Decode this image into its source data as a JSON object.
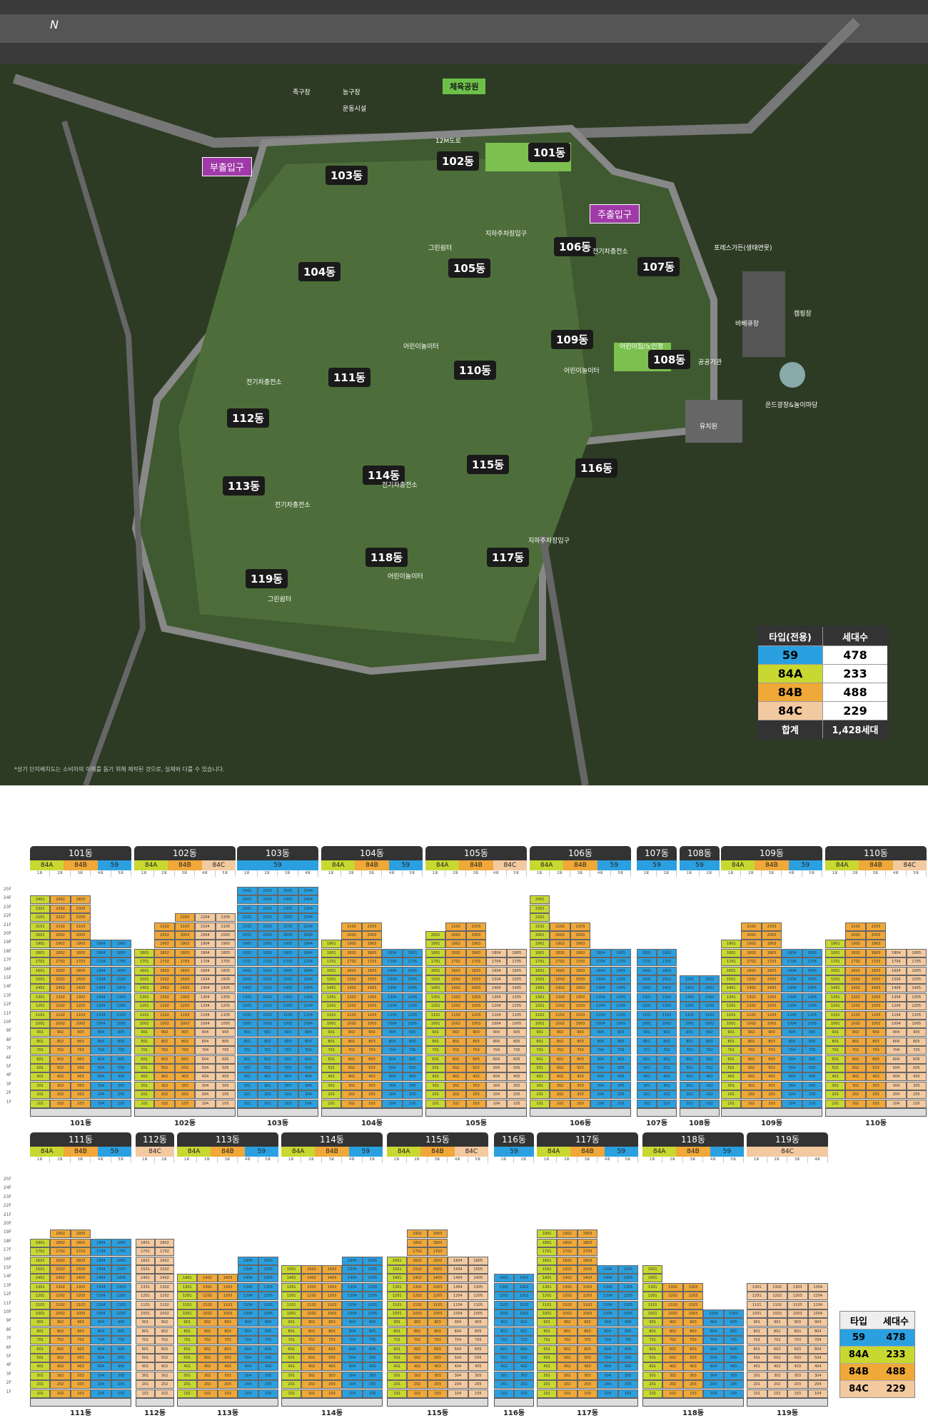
{
  "map": {
    "compass": "N",
    "park_label": "체육공원",
    "gates": {
      "sub": "부출입구",
      "main": "주출입구"
    },
    "road_label": "12M도로",
    "buildings": [
      "101동",
      "102동",
      "103동",
      "104동",
      "105동",
      "106동",
      "107동",
      "108동",
      "109동",
      "110동",
      "111동",
      "112동",
      "113동",
      "114동",
      "115동",
      "116동",
      "117동",
      "118동",
      "119동"
    ],
    "facilities": [
      "족구장",
      "농구장",
      "운동시설",
      "그린쉼터",
      "그린쉼터",
      "지하주차장입구",
      "지하주차장입구",
      "전기차충전소",
      "전기차충전소",
      "전기차충전소",
      "전기차충전소",
      "어린이놀이터",
      "어린이놀이터",
      "어린이놀이터",
      "어린이집/노인정",
      "포레스가든(생태연못)",
      "바베큐장",
      "캠핑장",
      "공공기관",
      "유치원",
      "온드광장&놀이마당"
    ],
    "disclaimer": "*상기 단지배치도는 소비자의 이해를 돕기 위해 제작된 것으로, 실제와 다를 수 있습니다.",
    "legend": {
      "header": [
        "타입(전용)",
        "세대수"
      ],
      "rows": [
        {
          "type": "59",
          "count": "478",
          "color": "#2aa0e0"
        },
        {
          "type": "84A",
          "count": "233",
          "color": "#c8d830"
        },
        {
          "type": "84B",
          "count": "488",
          "color": "#f0a838"
        },
        {
          "type": "84C",
          "count": "229",
          "color": "#f3c9a0"
        }
      ],
      "total_label": "합계",
      "total": "1,428세대"
    }
  },
  "colors": {
    "59": "#2aa0e0",
    "84A": "#c8d830",
    "84B": "#f0a838",
    "84C": "#f3c9a0"
  },
  "floor_labels": [
    "25F",
    "24F",
    "23F",
    "22F",
    "21F",
    "20F",
    "19F",
    "18F",
    "17F",
    "16F",
    "15F",
    "14F",
    "13F",
    "12F",
    "11F",
    "10F",
    "9F",
    "8F",
    "7F",
    "6F",
    "5F",
    "4F",
    "3F",
    "2F",
    "1F"
  ],
  "rows": [
    [
      {
        "name": "101동",
        "types": [
          "84A",
          "84B",
          "59"
        ],
        "lines": [
          "1호",
          "2호",
          "3호",
          "4호",
          "5호"
        ],
        "heights": [
          24,
          24,
          24,
          19,
          19
        ],
        "ltypes": [
          "84A",
          "84B",
          "84B",
          "59",
          "59"
        ]
      },
      {
        "name": "102동",
        "types": [
          "84A",
          "84B",
          "84C"
        ],
        "lines": [
          "1호",
          "2호",
          "3호",
          "4호",
          "5호"
        ],
        "heights": [
          18,
          21,
          22,
          22,
          22
        ],
        "ltypes": [
          "84A",
          "84B",
          "84B",
          "84C",
          "84C"
        ]
      },
      {
        "name": "103동",
        "types": [
          "59"
        ],
        "lines": [
          "1호",
          "2호",
          "3호",
          "4호"
        ],
        "heights": [
          25,
          25,
          25,
          25
        ],
        "ltypes": [
          "59",
          "59",
          "59",
          "59"
        ]
      },
      {
        "name": "104동",
        "types": [
          "84A",
          "84B",
          "59"
        ],
        "lines": [
          "1호",
          "2호",
          "3호",
          "4호",
          "5호"
        ],
        "heights": [
          19,
          21,
          21,
          18,
          18
        ],
        "ltypes": [
          "84A",
          "84B",
          "84B",
          "59",
          "59"
        ]
      },
      {
        "name": "105동",
        "types": [
          "84A",
          "84B",
          "84C"
        ],
        "lines": [
          "1호",
          "2호",
          "3호",
          "4호",
          "5호"
        ],
        "heights": [
          20,
          21,
          21,
          18,
          18
        ],
        "ltypes": [
          "84A",
          "84B",
          "84B",
          "84C",
          "84C"
        ]
      },
      {
        "name": "106동",
        "types": [
          "84A",
          "84B",
          "59"
        ],
        "lines": [
          "1호",
          "2호",
          "3호",
          "4호",
          "5호"
        ],
        "heights": [
          24,
          21,
          21,
          18,
          18
        ],
        "ltypes": [
          "84A",
          "84B",
          "84B",
          "59",
          "59"
        ]
      },
      {
        "name": "107동",
        "types": [
          "59"
        ],
        "lines": [
          "1호",
          "2호"
        ],
        "heights": [
          18,
          18
        ],
        "ltypes": [
          "59",
          "59"
        ]
      },
      {
        "name": "108동",
        "types": [
          "59"
        ],
        "lines": [
          "1호",
          "2호"
        ],
        "heights": [
          15,
          15
        ],
        "ltypes": [
          "59",
          "59"
        ]
      },
      {
        "name": "109동",
        "types": [
          "84A",
          "84B",
          "59"
        ],
        "lines": [
          "1호",
          "2호",
          "3호",
          "4호",
          "5호"
        ],
        "heights": [
          19,
          21,
          21,
          18,
          18
        ],
        "ltypes": [
          "84A",
          "84B",
          "84B",
          "59",
          "59"
        ]
      },
      {
        "name": "110동",
        "types": [
          "84A",
          "84B",
          "84C"
        ],
        "lines": [
          "1호",
          "2호",
          "3호",
          "4호",
          "5호"
        ],
        "heights": [
          19,
          21,
          21,
          18,
          18
        ],
        "ltypes": [
          "84A",
          "84B",
          "84B",
          "84C",
          "84C"
        ]
      }
    ],
    [
      {
        "name": "111동",
        "types": [
          "84A",
          "84B",
          "59"
        ],
        "lines": [
          "1호",
          "2호",
          "3호",
          "4호",
          "5호"
        ],
        "heights": [
          18,
          19,
          19,
          18,
          18
        ],
        "ltypes": [
          "84A",
          "84B",
          "84B",
          "59",
          "59"
        ]
      },
      {
        "name": "112동",
        "types": [
          "84C"
        ],
        "lines": [
          "1호",
          "2호"
        ],
        "heights": [
          18,
          18
        ],
        "ltypes": [
          "84C",
          "84C"
        ]
      },
      {
        "name": "113동",
        "types": [
          "84A",
          "84B",
          "59"
        ],
        "lines": [
          "1호",
          "2호",
          "3호",
          "4호",
          "5호"
        ],
        "heights": [
          14,
          14,
          14,
          16,
          16
        ],
        "ltypes": [
          "84A",
          "84B",
          "84B",
          "59",
          "59"
        ]
      },
      {
        "name": "114동",
        "types": [
          "84A",
          "84B",
          "59"
        ],
        "lines": [
          "1호",
          "2호",
          "3호",
          "4호",
          "5호"
        ],
        "heights": [
          15,
          15,
          15,
          16,
          16
        ],
        "ltypes": [
          "84A",
          "84B",
          "84B",
          "59",
          "59"
        ]
      },
      {
        "name": "115동",
        "types": [
          "84A",
          "84B",
          "84C"
        ],
        "lines": [
          "1호",
          "2호",
          "3호",
          "4호",
          "5호"
        ],
        "heights": [
          16,
          19,
          19,
          16,
          16
        ],
        "ltypes": [
          "84A",
          "84B",
          "84B",
          "84C",
          "84C"
        ]
      },
      {
        "name": "116동",
        "types": [
          "59"
        ],
        "lines": [
          "1호",
          "2호"
        ],
        "heights": [
          14,
          14
        ],
        "ltypes": [
          "59",
          "59"
        ]
      },
      {
        "name": "117동",
        "types": [
          "84A",
          "84B",
          "59"
        ],
        "lines": [
          "1호",
          "2호",
          "3호",
          "4호",
          "5호"
        ],
        "heights": [
          19,
          19,
          19,
          15,
          15
        ],
        "ltypes": [
          "84A",
          "84B",
          "84B",
          "59",
          "59"
        ]
      },
      {
        "name": "118동",
        "types": [
          "84A",
          "84B",
          "59"
        ],
        "lines": [
          "1호",
          "2호",
          "3호",
          "4호",
          "5호"
        ],
        "heights": [
          15,
          13,
          13,
          10,
          10
        ],
        "ltypes": [
          "84A",
          "84B",
          "84B",
          "59",
          "59"
        ]
      },
      {
        "name": "119동",
        "types": [
          "84C"
        ],
        "lines": [
          "1호",
          "2호",
          "3호",
          "4호"
        ],
        "heights": [
          13,
          13,
          13,
          13
        ],
        "ltypes": [
          "84C",
          "84C",
          "84C",
          "84C"
        ]
      }
    ]
  ],
  "legend2": {
    "header": [
      "타입",
      "세대수"
    ],
    "rows": [
      {
        "type": "59",
        "count": "478"
      },
      {
        "type": "84A",
        "count": "233"
      },
      {
        "type": "84B",
        "count": "488"
      },
      {
        "type": "84C",
        "count": "229"
      }
    ]
  }
}
